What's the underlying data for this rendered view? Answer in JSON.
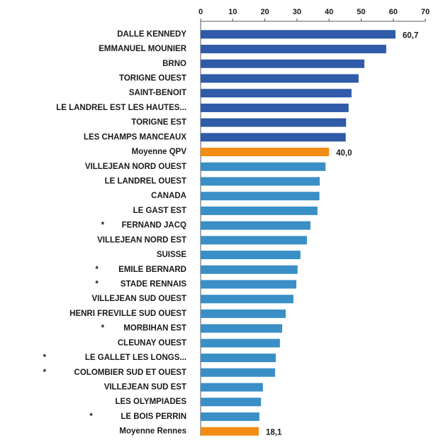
{
  "chart_data": {
    "type": "hbar",
    "categories": [
      "DALLE KENNEDY",
      "EMMANUEL MOUNIER",
      "BRNO",
      "TORIGNE OUEST",
      "SAINT-BENOIT",
      "LE LANDREL EST LES HAUTES...",
      "TORIGNE EST",
      "LES CHAMPS MANCEAUX",
      "Moyenne QPV",
      "VILLEJEAN NORD OUEST",
      "LE LANDREL OUEST",
      "CANADA",
      "LE GAST EST",
      "FERNAND JACQ",
      "VILLEJEAN NORD EST",
      "SUISSE",
      "EMILE BERNARD",
      "STADE RENNAIS",
      "VILLEJEAN SUD OUEST",
      "HENRI FREVILLE SUD OUEST",
      "MORBIHAN EST",
      "CLEUNAY OUEST",
      "LE GALLET LES LONGS...",
      "COLOMBIER SUD ET OUEST",
      "VILLEJEAN SUD EST",
      "LES OLYMPIADES",
      "LE BOIS PERRIN",
      "Moyenne Rennes"
    ],
    "asterisks": [
      null,
      null,
      null,
      null,
      null,
      null,
      null,
      null,
      null,
      null,
      null,
      null,
      null,
      "*",
      null,
      null,
      "*",
      "*",
      null,
      null,
      "*",
      null,
      "*",
      "*",
      null,
      null,
      "*",
      null
    ],
    "values": [
      60.7,
      57.8,
      51.0,
      49.2,
      47.0,
      46.1,
      45.3,
      45.2,
      40.0,
      38.9,
      37.1,
      37.0,
      36.4,
      34.2,
      33.1,
      31.1,
      30.2,
      29.8,
      28.9,
      26.5,
      25.4,
      24.7,
      23.4,
      23.2,
      19.4,
      18.8,
      18.3,
      18.1
    ],
    "value_labels": [
      "60,7",
      null,
      null,
      null,
      null,
      null,
      null,
      null,
      "40,0",
      null,
      null,
      null,
      null,
      null,
      null,
      null,
      null,
      null,
      null,
      null,
      null,
      null,
      null,
      null,
      null,
      null,
      null,
      "18,1"
    ],
    "colors": [
      "#2f5ba8",
      "#2f5ba8",
      "#2f5ba8",
      "#2f5ba8",
      "#2f5ba8",
      "#2f5ba8",
      "#2f5ba8",
      "#2f5ba8",
      "#f28c12",
      "#3a8fc6",
      "#3a8fc6",
      "#3a8fc6",
      "#3a8fc6",
      "#3a8fc6",
      "#3a8fc6",
      "#3a8fc6",
      "#3a8fc6",
      "#3a8fc6",
      "#3a8fc6",
      "#3a8fc6",
      "#3a8fc6",
      "#3a8fc6",
      "#3a8fc6",
      "#3a8fc6",
      "#3a8fc6",
      "#3a8fc6",
      "#3a8fc6",
      "#f28c12"
    ],
    "xlim": [
      0,
      70
    ],
    "xticks": [
      0,
      10,
      20,
      30,
      40,
      50,
      60,
      70
    ]
  }
}
